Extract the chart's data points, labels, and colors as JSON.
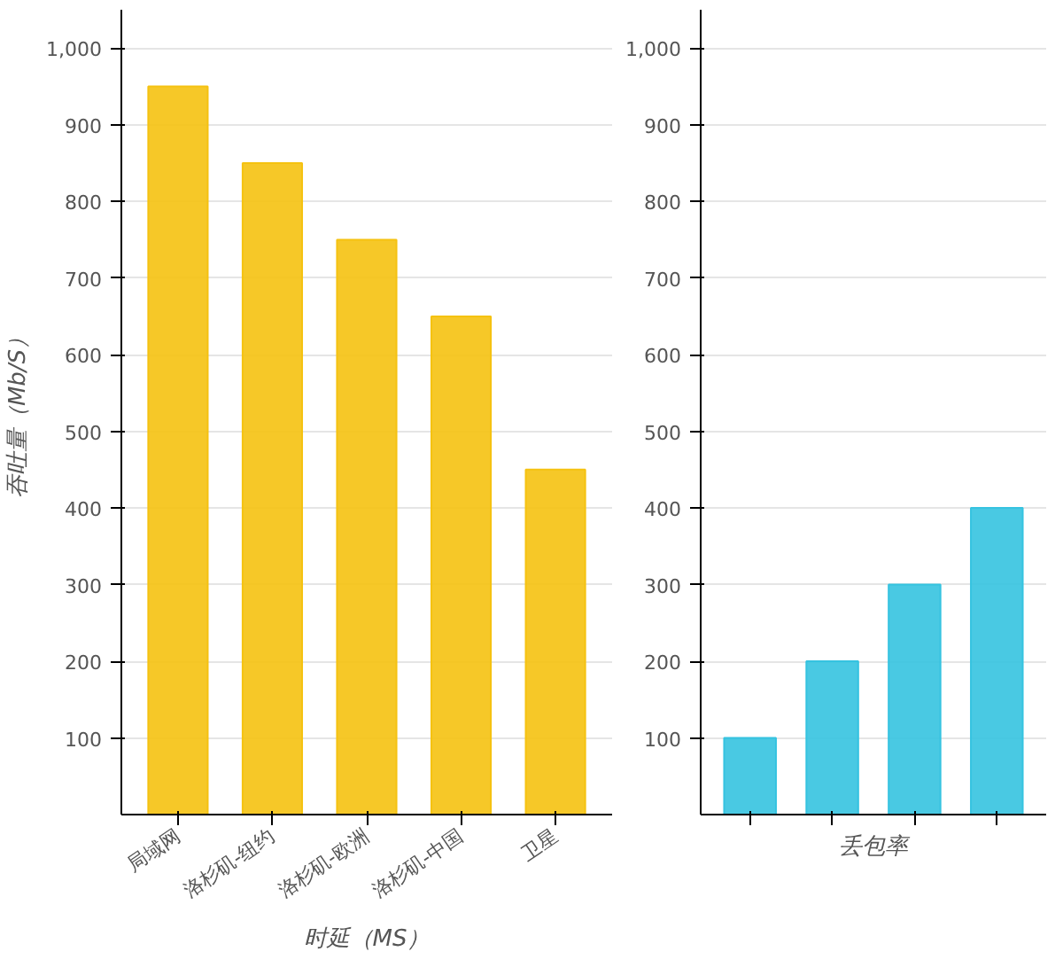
{
  "chart_data": [
    {
      "type": "bar",
      "ylabel": "吞吐量（Mb/S）",
      "xlabel": "时延（MS）",
      "categories": [
        "局域网",
        "洛杉矶-纽约",
        "洛杉矶-欧洲",
        "洛杉矶-中国",
        "卫星"
      ],
      "series": [
        {
          "color": "#f5c211",
          "values": [
            950,
            850,
            750,
            650,
            450
          ]
        }
      ],
      "ylim": [
        0,
        1050
      ],
      "yticks": [
        100,
        200,
        300,
        400,
        500,
        600,
        700,
        800,
        900,
        {
          "value": 1000,
          "label": "1,000"
        }
      ],
      "grid": "y"
    },
    {
      "type": "bar",
      "xlabel": "丢包率",
      "categories": [
        null,
        null,
        null,
        null
      ],
      "series": [
        {
          "color": "#35c3e0",
          "values": [
            100,
            200,
            300,
            400
          ]
        }
      ],
      "ylim": [
        0,
        1050
      ],
      "yticks": [
        100,
        200,
        300,
        400,
        500,
        600,
        700,
        800,
        900,
        {
          "value": 1000,
          "label": "1,000"
        }
      ],
      "grid": "y"
    }
  ]
}
